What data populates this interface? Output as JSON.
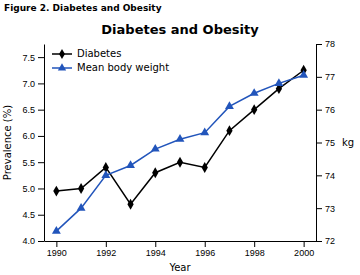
{
  "chart_data": {
    "type": "line",
    "subtitle": "Figure 2. Diabetes and Obesity",
    "title": "Diabetes and Obesity",
    "x_label": "Year",
    "y_label": "Prevalence (%)",
    "y2_label": "kg",
    "x": [
      1990,
      1991,
      1992,
      1993,
      1994,
      1995,
      1996,
      1997,
      1998,
      1999,
      2000
    ],
    "series": [
      {
        "name": "Diabetes",
        "color": "#000000",
        "marker": "diamond",
        "values": [
          4.95,
          5.0,
          5.4,
          4.7,
          5.3,
          5.5,
          5.4,
          6.1,
          6.5,
          6.9,
          7.25
        ]
      },
      {
        "name": "Mean body weight",
        "color": "#2255bb",
        "marker": "triangle",
        "axis": "y2",
        "values": [
          72.3,
          73.0,
          74.0,
          74.3,
          74.8,
          75.1,
          75.3,
          76.1,
          76.5,
          76.8,
          77.05
        ]
      }
    ],
    "xlim": [
      1989.5,
      2000.5
    ],
    "xticks": [
      1990,
      1992,
      1994,
      1996,
      1998,
      2000
    ],
    "ylim": [
      4.0,
      7.75
    ],
    "yticks": [
      {
        "value": 4.0,
        "label": "4.0"
      },
      4.5,
      {
        "value": 5.0,
        "label": "5.0"
      },
      5.5,
      {
        "value": 6.0,
        "label": "6.0"
      },
      6.5,
      {
        "value": 7.0,
        "label": "7.0"
      },
      7.5
    ],
    "y2lim": [
      72.0,
      78.0
    ],
    "y2ticks": [
      72,
      73,
      74,
      75,
      76,
      77,
      78
    ],
    "legend": "upper left",
    "grid": false
  }
}
